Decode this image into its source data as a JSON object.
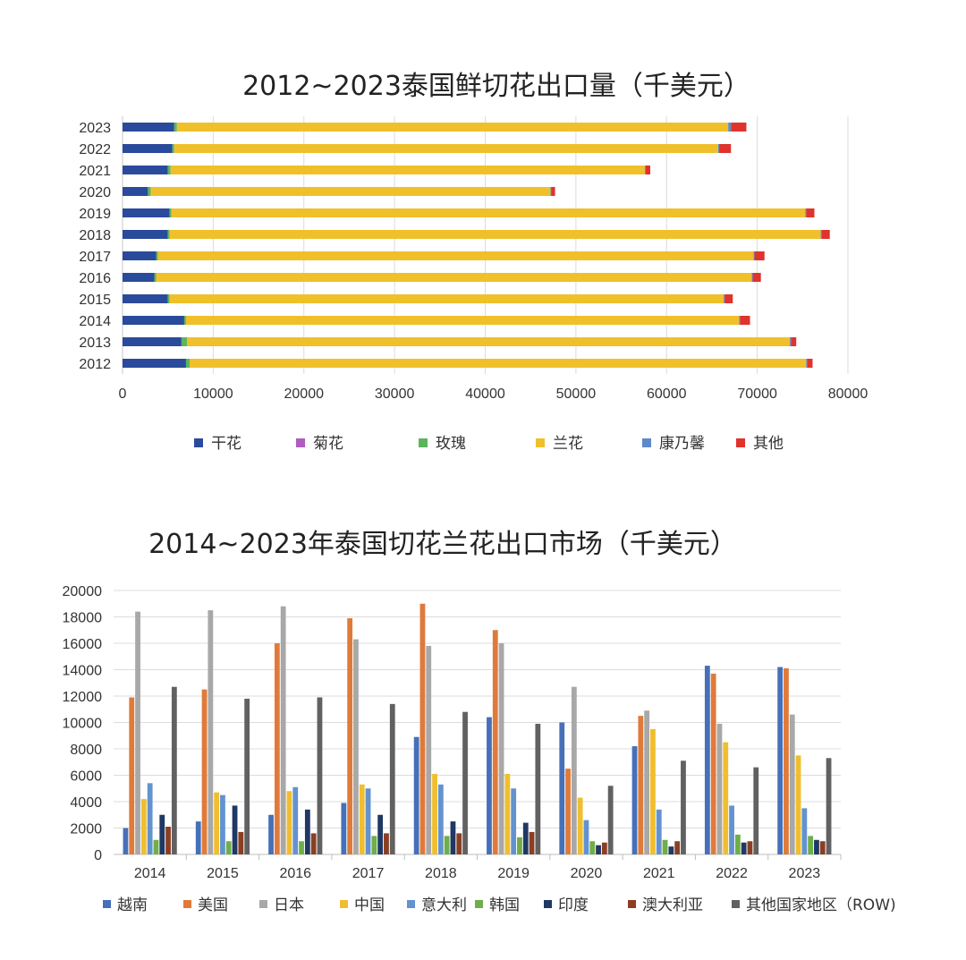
{
  "colors": {
    "dried": "#2a4b9b",
    "chrysanthemum": "#b05cc0",
    "rose": "#5ab55e",
    "orchid": "#f0c02b",
    "carnation": "#5f89c9",
    "other": "#e0332c",
    "vietnam": "#4670b8",
    "usa": "#e07a3a",
    "japan": "#a8a8a8",
    "china": "#f0be2e",
    "italy": "#6393cf",
    "korea": "#6fae48",
    "india": "#1f3864",
    "australia": "#8b3f22",
    "row": "#616161",
    "grid": "#dcdcdc"
  },
  "chart_data": [
    {
      "type": "bar",
      "orientation": "horizontal",
      "stacked": true,
      "title": "2012~2023泰国鲜切花出口量（千美元）",
      "categories": [
        "2012",
        "2013",
        "2014",
        "2015",
        "2016",
        "2017",
        "2018",
        "2019",
        "2020",
        "2021",
        "2022",
        "2023"
      ],
      "xlim": [
        0,
        80000
      ],
      "xticks": [
        "0",
        "10000",
        "20000",
        "30000",
        "40000",
        "50000",
        "60000",
        "70000",
        "80000"
      ],
      "grid": "vertical",
      "legend_position": "bottom",
      "series": [
        {
          "name": "干花",
          "color_key": "dried",
          "values": [
            7000,
            6500,
            6800,
            5000,
            3500,
            3700,
            5000,
            5200,
            2800,
            5000,
            5500,
            5700
          ]
        },
        {
          "name": "菊花",
          "color_key": "chrysanthemum",
          "values": [
            0,
            0,
            0,
            0,
            0,
            0,
            0,
            0,
            0,
            0,
            0,
            0
          ]
        },
        {
          "name": "玫瑰",
          "color_key": "rose",
          "values": [
            400,
            600,
            200,
            200,
            200,
            200,
            200,
            200,
            300,
            300,
            200,
            300
          ]
        },
        {
          "name": "兰花",
          "color_key": "orchid",
          "values": [
            68000,
            66500,
            61000,
            61100,
            65700,
            65700,
            71800,
            69900,
            44100,
            52300,
            60000,
            60800
          ]
        },
        {
          "name": "康乃馨",
          "color_key": "carnation",
          "values": [
            100,
            100,
            100,
            100,
            100,
            100,
            100,
            100,
            100,
            100,
            100,
            300
          ]
        },
        {
          "name": "其他",
          "color_key": "other",
          "values": [
            600,
            600,
            1100,
            900,
            900,
            1100,
            900,
            900,
            400,
            500,
            1300,
            1700
          ]
        }
      ]
    },
    {
      "type": "bar",
      "orientation": "vertical",
      "stacked": false,
      "title": "2014~2023年泰国切花兰花出口市场（千美元）",
      "categories": [
        "2014",
        "2015",
        "2016",
        "2017",
        "2018",
        "2019",
        "2020",
        "2021",
        "2022",
        "2023"
      ],
      "ylim": [
        0,
        20000
      ],
      "yticks": [
        "0",
        "2000",
        "4000",
        "6000",
        "8000",
        "10000",
        "12000",
        "14000",
        "16000",
        "18000",
        "20000"
      ],
      "grid": "horizontal",
      "legend_position": "bottom",
      "series": [
        {
          "name": "越南",
          "color_key": "vietnam",
          "values": [
            2000,
            2500,
            3000,
            3900,
            8900,
            10400,
            10000,
            8200,
            14300,
            14200
          ]
        },
        {
          "name": "美国",
          "color_key": "usa",
          "values": [
            11900,
            12500,
            16000,
            17900,
            19000,
            17000,
            6500,
            10500,
            13700,
            14100
          ]
        },
        {
          "name": "日本",
          "color_key": "japan",
          "values": [
            18400,
            18500,
            18800,
            16300,
            15800,
            16000,
            12700,
            10900,
            9900,
            10600
          ]
        },
        {
          "name": "中国",
          "color_key": "china",
          "values": [
            4200,
            4700,
            4800,
            5300,
            6100,
            6100,
            4300,
            9500,
            8500,
            7500
          ]
        },
        {
          "name": "意大利",
          "color_key": "italy",
          "values": [
            5400,
            4500,
            5100,
            5000,
            5300,
            5000,
            2600,
            3400,
            3700,
            3500
          ]
        },
        {
          "name": "韩国",
          "color_key": "korea",
          "values": [
            1100,
            1000,
            1000,
            1400,
            1400,
            1300,
            1000,
            1100,
            1500,
            1400
          ]
        },
        {
          "name": "印度",
          "color_key": "india",
          "values": [
            3000,
            3700,
            3400,
            3000,
            2500,
            2400,
            700,
            600,
            900,
            1100
          ]
        },
        {
          "name": "澳大利亚",
          "color_key": "australia",
          "values": [
            2100,
            1700,
            1600,
            1600,
            1600,
            1700,
            900,
            1000,
            1000,
            1000
          ]
        },
        {
          "name": "其他国家地区（ROW)",
          "color_key": "row",
          "values": [
            12700,
            11800,
            11900,
            11400,
            10800,
            9900,
            5200,
            7100,
            6600,
            7300
          ]
        }
      ]
    }
  ]
}
